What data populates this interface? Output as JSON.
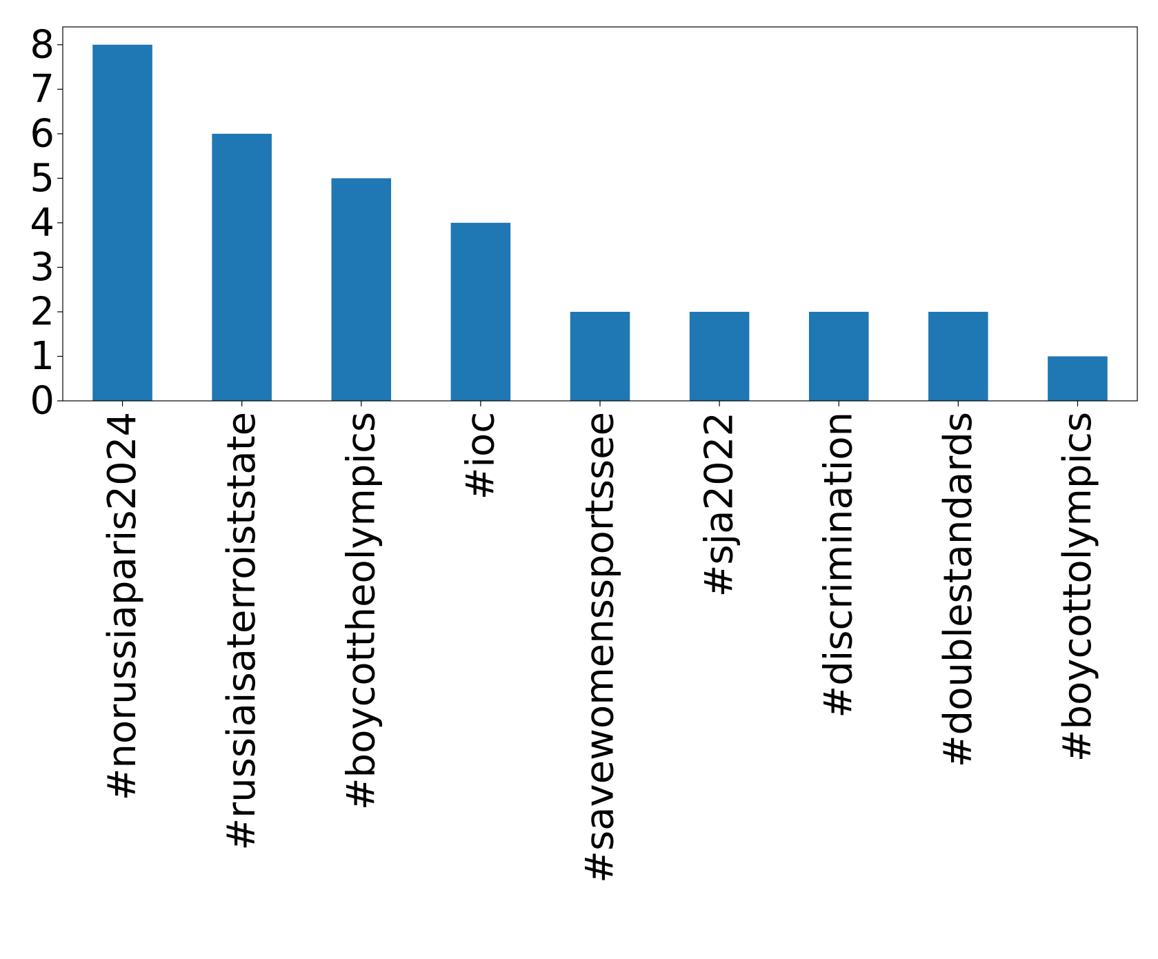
{
  "chart_data": {
    "type": "bar",
    "categories": [
      "#norussiaparis2024",
      "#russiaisaterroiststate",
      "#boycottheolympics",
      "#ioc",
      "#savewomenssportssee",
      "#sja2022",
      "#discrimination",
      "#doublestandards",
      "#boycottolympics"
    ],
    "values": [
      8,
      6,
      5,
      4,
      2,
      2,
      2,
      2,
      1
    ],
    "ylim": [
      0,
      8.4
    ],
    "yticks": [
      "0",
      "1",
      "2",
      "3",
      "4",
      "5",
      "6",
      "7",
      "8"
    ],
    "title": "",
    "xlabel": "",
    "ylabel": "",
    "grid": false,
    "bar_color": "#1f77b4"
  }
}
